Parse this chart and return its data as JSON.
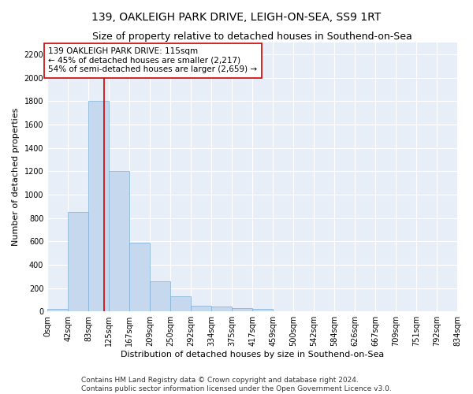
{
  "title": "139, OAKLEIGH PARK DRIVE, LEIGH-ON-SEA, SS9 1RT",
  "subtitle": "Size of property relative to detached houses in Southend-on-Sea",
  "xlabel": "Distribution of detached houses by size in Southend-on-Sea",
  "ylabel": "Number of detached properties",
  "footnote1": "Contains HM Land Registry data © Crown copyright and database right 2024.",
  "footnote2": "Contains public sector information licensed under the Open Government Licence v3.0.",
  "annotation_line1": "139 OAKLEIGH PARK DRIVE: 115sqm",
  "annotation_line2": "← 45% of detached houses are smaller (2,217)",
  "annotation_line3": "54% of semi-detached houses are larger (2,659) →",
  "property_size": 115,
  "bin_edges": [
    0,
    42,
    83,
    125,
    167,
    209,
    250,
    292,
    334,
    375,
    417,
    459,
    500,
    542,
    584,
    626,
    667,
    709,
    751,
    792,
    834
  ],
  "bar_heights": [
    25,
    850,
    1800,
    1200,
    590,
    260,
    130,
    50,
    45,
    30,
    20,
    0,
    0,
    0,
    0,
    0,
    0,
    0,
    0,
    0
  ],
  "bar_color": "#c5d8ee",
  "bar_edge_color": "#7aafd4",
  "vline_color": "#cc0000",
  "vline_x": 115,
  "ylim": [
    0,
    2300
  ],
  "yticks": [
    0,
    200,
    400,
    600,
    800,
    1000,
    1200,
    1400,
    1600,
    1800,
    2000,
    2200
  ],
  "bg_color": "#e8eef8",
  "grid_color": "#ffffff",
  "title_fontsize": 10,
  "subtitle_fontsize": 9,
  "axis_label_fontsize": 8,
  "tick_fontsize": 7,
  "annotation_fontsize": 7.5,
  "footnote_fontsize": 6.5
}
